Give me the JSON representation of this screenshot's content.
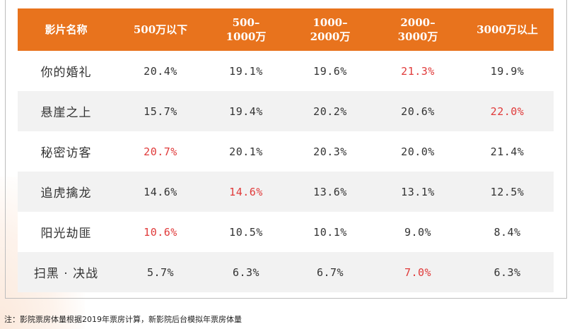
{
  "table": {
    "headers": [
      "影片名称",
      "500万以下",
      "500–\n1000万",
      "1000–\n2000万",
      "2000–\n3000万",
      "3000万以上"
    ],
    "rows": [
      {
        "name": "你的婚礼",
        "values": [
          "20.4%",
          "19.1%",
          "19.6%",
          "21.3%",
          "19.9%"
        ]
      },
      {
        "name": "悬崖之上",
        "values": [
          "15.7%",
          "19.4%",
          "20.2%",
          "20.6%",
          "22.0%"
        ]
      },
      {
        "name": "秘密访客",
        "values": [
          "20.7%",
          "20.1%",
          "20.3%",
          "20.0%",
          "21.4%"
        ]
      },
      {
        "name": "追虎擒龙",
        "values": [
          "14.6%",
          "14.6%",
          "13.6%",
          "13.1%",
          "12.5%"
        ]
      },
      {
        "name": "阳光劫匪",
        "values": [
          "10.6%",
          "10.5%",
          "10.1%",
          "9.0%",
          "8.4%"
        ]
      },
      {
        "name": "扫黑 · 决战",
        "values": [
          "5.7%",
          "6.3%",
          "6.7%",
          "7.0%",
          "6.3%"
        ]
      }
    ],
    "highlight_cells": [
      [
        0,
        3
      ],
      [
        1,
        4
      ],
      [
        2,
        0
      ],
      [
        3,
        1
      ],
      [
        4,
        0
      ],
      [
        5,
        3
      ]
    ]
  },
  "colors": {
    "header_bg": "#e8731d",
    "header_text": "#ffffff",
    "highlight_text": "#e03a3a",
    "stripe": "#f2f2f2"
  },
  "footnote": "注：影院票房体量根据2019年票房计算，新影院后台模拟年票房体量"
}
